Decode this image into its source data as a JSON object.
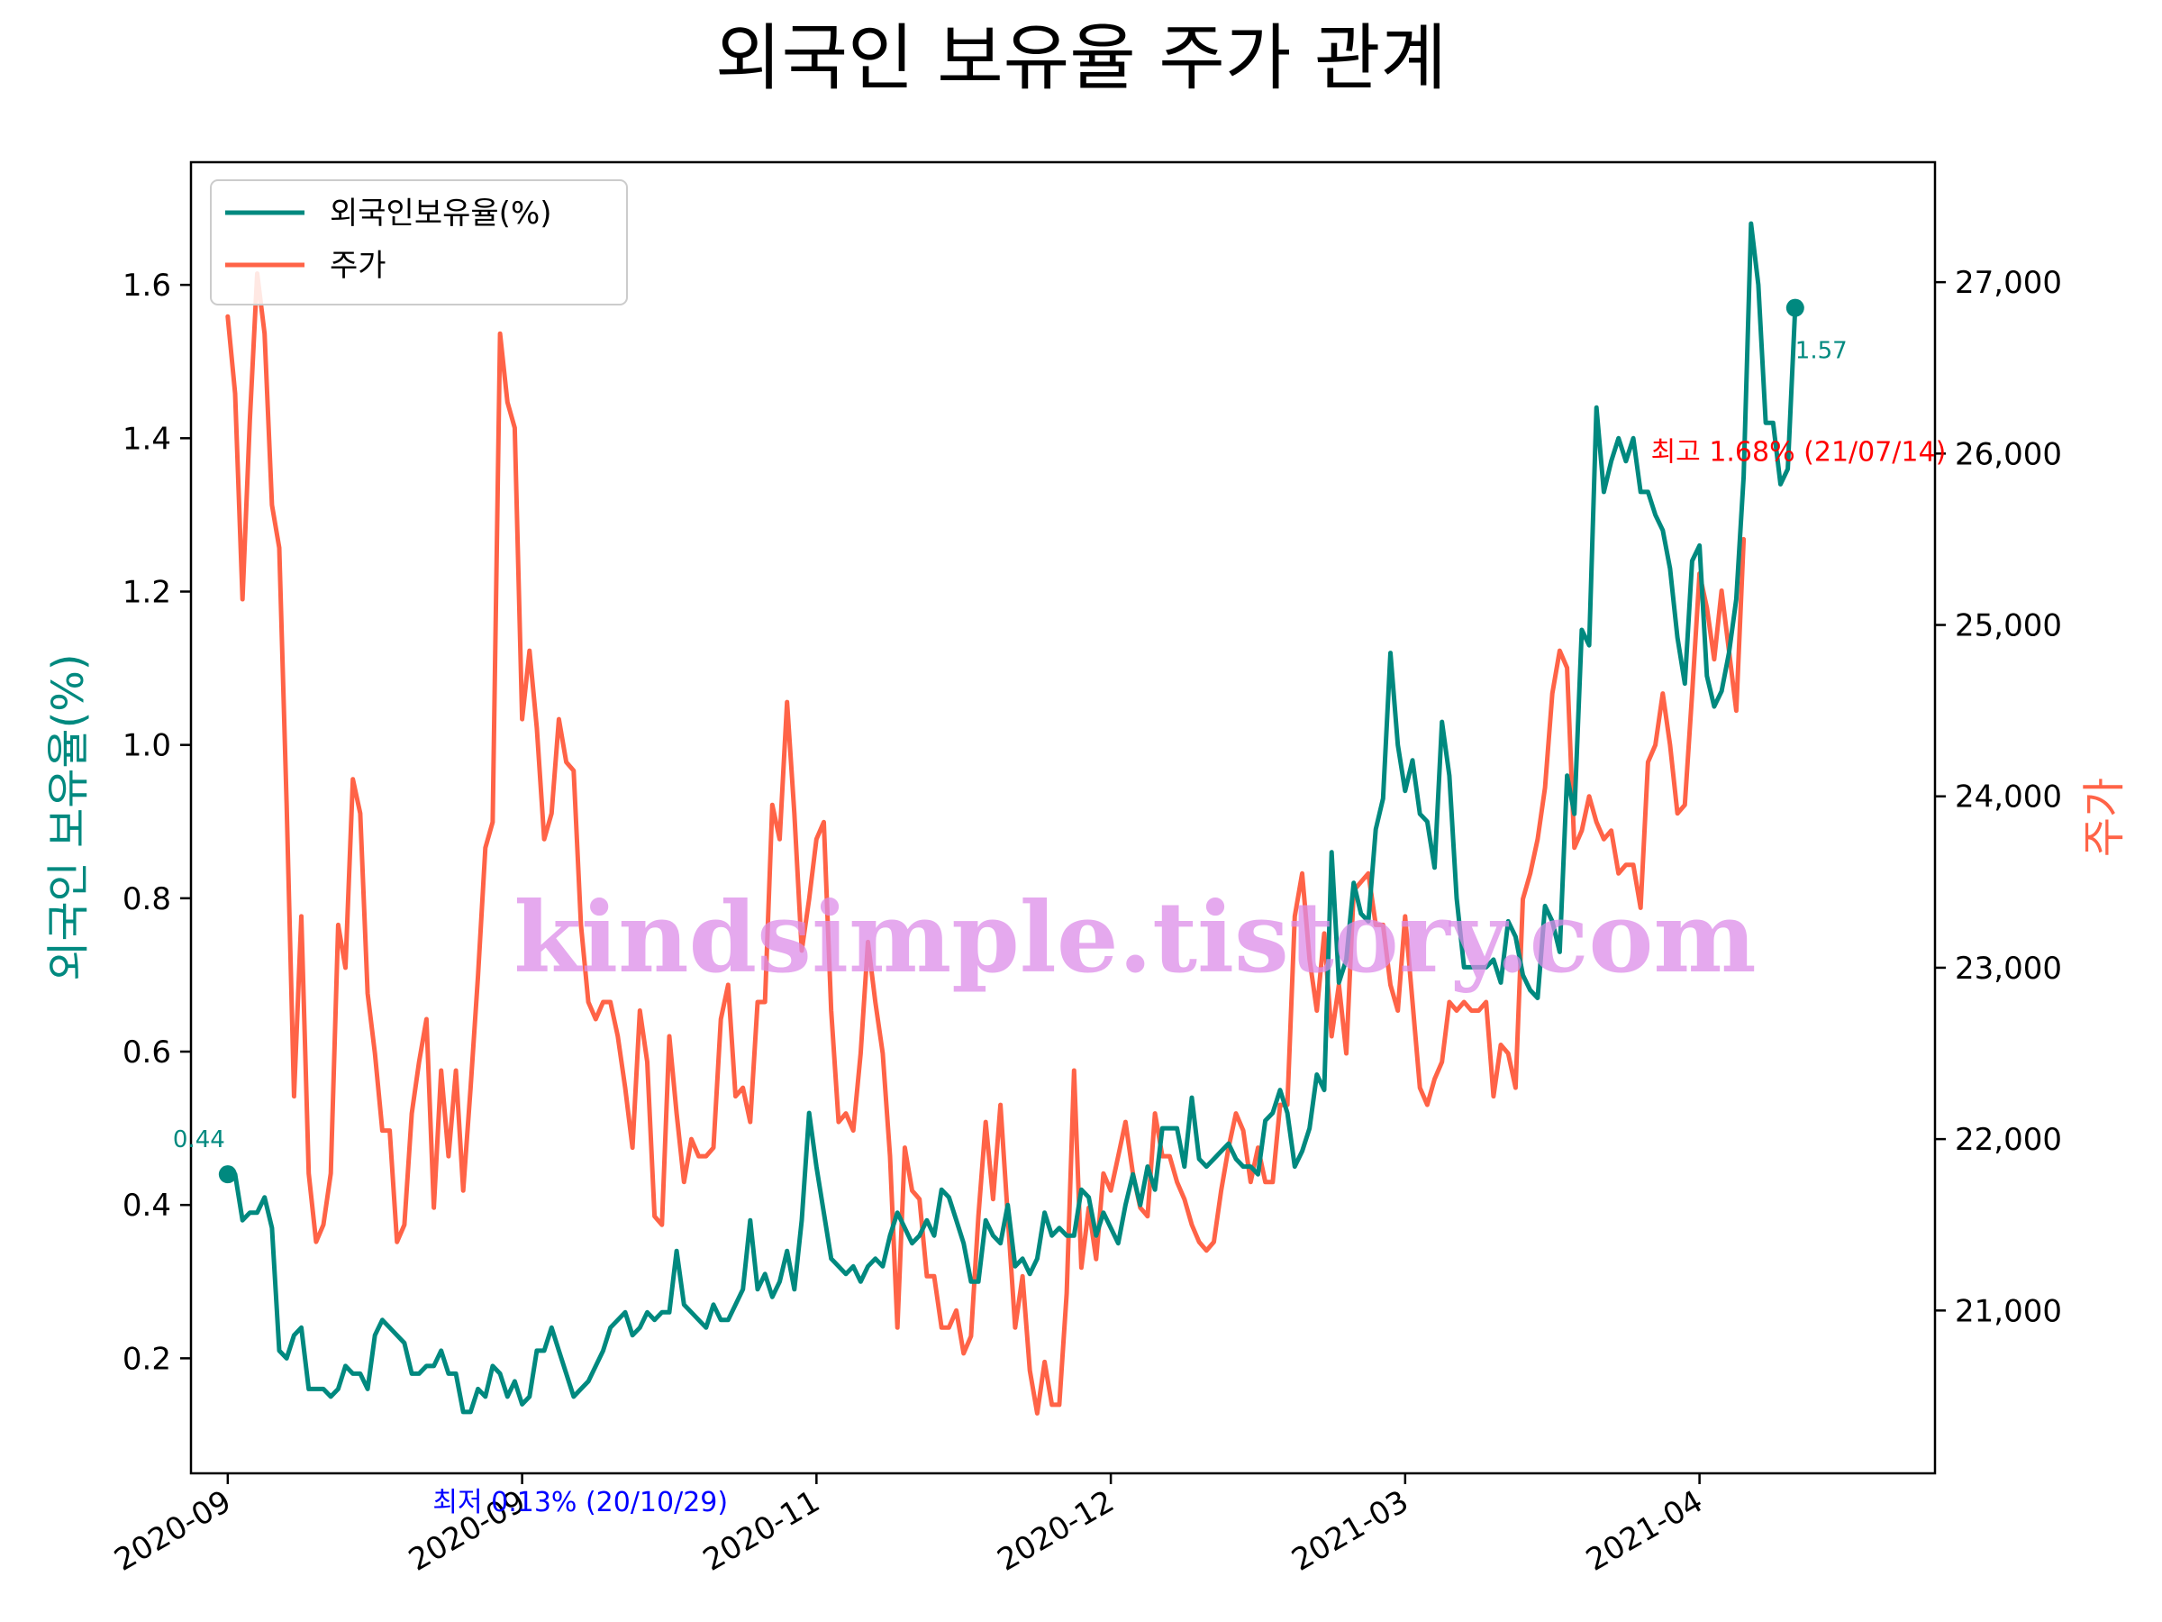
{
  "chart_data": {
    "type": "line",
    "title": "외국인 보유율 주가 관계",
    "xlabel": "",
    "ylabel_left": "외국인 보유율(%)",
    "ylabel_right": "주가",
    "x_tick_labels": [
      "2020-09",
      "2020-09",
      "2020-11",
      "2020-12",
      "2021-03",
      "2021-04"
    ],
    "ylim_left": [
      0.05,
      1.76
    ],
    "yticks_left": [
      0.2,
      0.4,
      0.6,
      0.8,
      1.0,
      1.2,
      1.4,
      1.6
    ],
    "ytick_labels_left": [
      "0.2",
      "0.4",
      "0.6",
      "0.8",
      "1.0",
      "1.2",
      "1.4",
      "1.6"
    ],
    "ylim_right": [
      20050,
      27700
    ],
    "yticks_right": [
      21000,
      22000,
      23000,
      24000,
      25000,
      26000,
      27000
    ],
    "ytick_labels_right": [
      "21,000",
      "22,000",
      "23,000",
      "24,000",
      "25,000",
      "26,000",
      "27,000"
    ],
    "x_index_range": [
      -5,
      232
    ],
    "x_tick_positions": [
      0,
      40,
      80,
      120,
      160,
      200
    ],
    "legend": {
      "location": "upper-left",
      "entries": [
        "외국인보유율(%)",
        "주가"
      ]
    },
    "series": [
      {
        "name": "외국인보유율(%)",
        "axis": "left",
        "color": "#00897f",
        "values": [
          0.44,
          0.44,
          0.38,
          0.39,
          0.39,
          0.41,
          0.37,
          0.21,
          0.2,
          0.23,
          0.24,
          0.16,
          0.16,
          0.16,
          0.15,
          0.16,
          0.19,
          0.18,
          0.18,
          0.16,
          0.23,
          0.25,
          0.24,
          0.23,
          0.22,
          0.18,
          0.18,
          0.19,
          0.19,
          0.21,
          0.18,
          0.18,
          0.13,
          0.13,
          0.16,
          0.15,
          0.19,
          0.18,
          0.15,
          0.17,
          0.14,
          0.15,
          0.21,
          0.21,
          0.24,
          0.21,
          0.18,
          0.15,
          0.16,
          0.17,
          0.19,
          0.21,
          0.24,
          0.25,
          0.26,
          0.23,
          0.24,
          0.26,
          0.25,
          0.26,
          0.26,
          0.34,
          0.27,
          0.26,
          0.25,
          0.24,
          0.27,
          0.25,
          0.25,
          0.27,
          0.29,
          0.38,
          0.29,
          0.31,
          0.28,
          0.3,
          0.34,
          0.29,
          0.38,
          0.52,
          0.45,
          0.39,
          0.33,
          0.32,
          0.31,
          0.32,
          0.3,
          0.32,
          0.33,
          0.32,
          0.36,
          0.39,
          0.37,
          0.35,
          0.36,
          0.38,
          0.36,
          0.42,
          0.41,
          0.38,
          0.35,
          0.3,
          0.3,
          0.38,
          0.36,
          0.35,
          0.4,
          0.32,
          0.33,
          0.31,
          0.33,
          0.39,
          0.36,
          0.37,
          0.36,
          0.36,
          0.42,
          0.41,
          0.36,
          0.39,
          0.37,
          0.35,
          0.4,
          0.44,
          0.4,
          0.45,
          0.42,
          0.5,
          0.5,
          0.5,
          0.45,
          0.54,
          0.46,
          0.45,
          0.46,
          0.47,
          0.48,
          0.46,
          0.45,
          0.45,
          0.44,
          0.51,
          0.52,
          0.55,
          0.52,
          0.45,
          0.47,
          0.5,
          0.57,
          0.55,
          0.86,
          0.69,
          0.72,
          0.82,
          0.78,
          0.77,
          0.89,
          0.93,
          1.12,
          1.0,
          0.94,
          0.98,
          0.91,
          0.9,
          0.84,
          1.03,
          0.96,
          0.8,
          0.71,
          0.71,
          0.71,
          0.71,
          0.72,
          0.69,
          0.77,
          0.75,
          0.7,
          0.68,
          0.67,
          0.79,
          0.77,
          0.73,
          0.96,
          0.91,
          1.15,
          1.13,
          1.44,
          1.33,
          1.37,
          1.4,
          1.37,
          1.4,
          1.33,
          1.33,
          1.3,
          1.28,
          1.23,
          1.14,
          1.08,
          1.24,
          1.26,
          1.09,
          1.05,
          1.07,
          1.12,
          1.19,
          1.35,
          1.68,
          1.6,
          1.42,
          1.42,
          1.34,
          1.36,
          1.57
        ]
      },
      {
        "name": "주가",
        "axis": "right",
        "color": "#ff6347",
        "values": [
          26800,
          26350,
          25150,
          26200,
          27050,
          26700,
          25700,
          25450,
          23950,
          22250,
          23300,
          21800,
          21400,
          21500,
          21800,
          23250,
          23000,
          24100,
          23900,
          22850,
          22500,
          22050,
          22050,
          21400,
          21500,
          22150,
          22450,
          22700,
          21600,
          22400,
          21900,
          22400,
          21700,
          22300,
          22950,
          23700,
          23850,
          26700,
          26300,
          26150,
          24450,
          24850,
          24400,
          23750,
          23900,
          24450,
          24200,
          24150,
          23250,
          22800,
          22700,
          22800,
          22800,
          22600,
          22300,
          21950,
          22750,
          22450,
          21550,
          21500,
          22600,
          22150,
          21750,
          22000,
          21900,
          21900,
          21950,
          22700,
          22900,
          22250,
          22300,
          22100,
          22800,
          22800,
          23950,
          23750,
          24550,
          23900,
          23100,
          23400,
          23750,
          23850,
          22750,
          22100,
          22150,
          22050,
          22500,
          23150,
          22800,
          22500,
          21900,
          20900,
          21950,
          21700,
          21650,
          21200,
          21200,
          20900,
          20900,
          21000,
          20750,
          20850,
          21550,
          22100,
          21650,
          22200,
          21550,
          20900,
          21200,
          20650,
          20400,
          20700,
          20450,
          20450,
          21100,
          22400,
          21250,
          21600,
          21300,
          21800,
          21700,
          21900,
          22100,
          21800,
          21600,
          21550,
          22150,
          21900,
          21900,
          21750,
          21650,
          21500,
          21400,
          21350,
          21400,
          21700,
          21950,
          22150,
          22050,
          21750,
          21950,
          21750,
          21750,
          22200,
          22200,
          23300,
          23550,
          23050,
          22750,
          23200,
          22600,
          22900,
          22500,
          23450,
          23500,
          23550,
          23250,
          23250,
          22900,
          22750,
          23300,
          22800,
          22300,
          22200,
          22350,
          22450,
          22800,
          22750,
          22800,
          22750,
          22750,
          22800,
          22250,
          22550,
          22500,
          22300,
          23400,
          23550,
          23750,
          24050,
          24600,
          24850,
          24750,
          23700,
          23800,
          24000,
          23850,
          23750,
          23800,
          23550,
          23600,
          23600,
          23350,
          24200,
          24300,
          24600,
          24300,
          23900,
          23950,
          24600,
          25300,
          25100,
          24800,
          25200,
          24850,
          24500,
          25500
        ]
      }
    ],
    "annotations": {
      "start_label": "0.44",
      "end_label": "1.57",
      "max_label": "최고 1.68% (21/07/14)",
      "min_label": "최저 0.13% (20/10/29)",
      "max_index": 211,
      "min_index": 32,
      "max_color": "#ff0000",
      "min_color": "#0000ff"
    }
  },
  "watermark": "kindsimple.tistory.com"
}
